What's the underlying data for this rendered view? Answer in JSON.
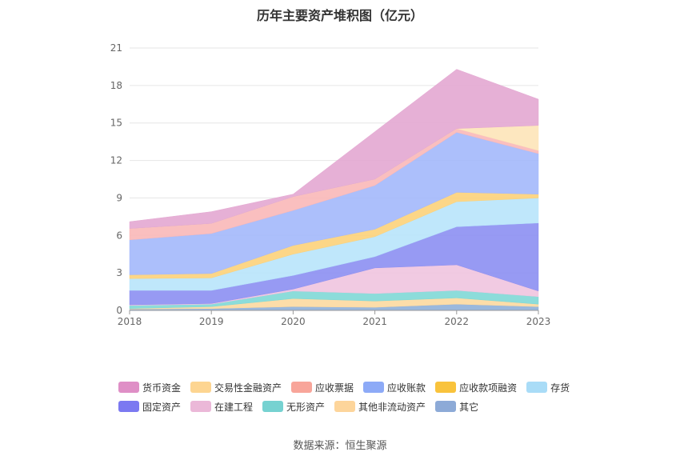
{
  "chart_data": {
    "type": "area",
    "stacked": true,
    "title": "历年主要资产堆积图（亿元）",
    "categories": [
      "2018",
      "2019",
      "2020",
      "2021",
      "2022",
      "2023"
    ],
    "ylim": [
      0,
      21
    ],
    "yticks": [
      0,
      3,
      6,
      9,
      12,
      15,
      18,
      21
    ],
    "grid": true,
    "legend_position": "bottom",
    "series": [
      {
        "name": "其它",
        "color": "#8fb0d9",
        "values": [
          0.1,
          0.15,
          0.3,
          0.25,
          0.5,
          0.3
        ]
      },
      {
        "name": "其他非流动资产",
        "color": "#fcd9a0",
        "values": [
          0.05,
          0.15,
          0.65,
          0.5,
          0.5,
          0.2
        ]
      },
      {
        "name": "无形资产",
        "color": "#7fd8d6",
        "values": [
          0.25,
          0.2,
          0.6,
          0.6,
          0.6,
          0.6
        ]
      },
      {
        "name": "在建工程",
        "color": "#f0c4df",
        "values": [
          0.05,
          0.05,
          0.15,
          2.05,
          2.05,
          0.45
        ]
      },
      {
        "name": "固定资产",
        "color": "#8c8ff2",
        "values": [
          1.15,
          1.05,
          1.1,
          0.9,
          3.05,
          5.45
        ]
      },
      {
        "name": "存货",
        "color": "#b8e4fb",
        "values": [
          0.95,
          1.0,
          1.7,
          1.6,
          2.0,
          2.0
        ]
      },
      {
        "name": "应收款项融资",
        "color": "#fcd27a",
        "values": [
          0.3,
          0.35,
          0.7,
          0.6,
          0.75,
          0.3
        ]
      },
      {
        "name": "应收账款",
        "color": "#a3b8fb",
        "values": [
          2.8,
          3.2,
          2.8,
          3.5,
          4.8,
          3.25
        ]
      },
      {
        "name": "应收票据",
        "color": "#f9b8b8",
        "values": [
          0.9,
          0.8,
          1.1,
          0.5,
          0.3,
          0.25
        ]
      },
      {
        "name": "交易性金融资产",
        "color": "#fde4b8",
        "values": [
          0,
          0,
          0,
          0,
          0,
          2.0
        ]
      },
      {
        "name": "货币资金",
        "color": "#e3a7d1",
        "values": [
          0.55,
          0.95,
          0.2,
          3.8,
          4.75,
          2.1
        ]
      }
    ],
    "legend_order": [
      "货币资金",
      "交易性金融资产",
      "应收票据",
      "应收账款",
      "应收款项融资",
      "存货",
      "固定资产",
      "在建工程",
      "无形资产",
      "其他非流动资产",
      "其它"
    ],
    "legend_colors": {
      "货币资金": "#df8fc6",
      "交易性金融资产": "#fdd591",
      "应收票据": "#f8a59a",
      "应收账款": "#8daaf7",
      "应收款项融资": "#f9c33c",
      "存货": "#a9dcf7",
      "固定资产": "#7b79f1",
      "在建工程": "#ebb8d8",
      "无形资产": "#76d2d1",
      "其他非流动资产": "#fdd59b",
      "其它": "#8daad7"
    }
  },
  "footer": {
    "source": "数据来源：恒生聚源"
  }
}
